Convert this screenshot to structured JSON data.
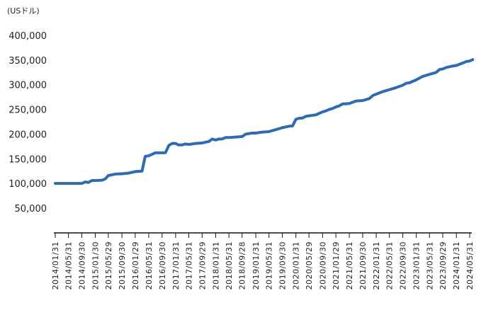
{
  "chart_data": {
    "type": "line",
    "title": "",
    "unit_label": "(USドル)",
    "xlabel": "",
    "ylabel": "",
    "ylim": [
      0,
      400000
    ],
    "yticks": [
      50000,
      100000,
      150000,
      200000,
      250000,
      300000,
      350000,
      400000
    ],
    "ytick_labels": [
      "50,000",
      "100,000",
      "150,000",
      "200,000",
      "250,000",
      "300,000",
      "350,000",
      "400,000"
    ],
    "xlim": [
      "2014-01-31",
      "2024-05-31"
    ],
    "xtick_dates": [
      "2014-01-31",
      "2014-05-31",
      "2014-09-30",
      "2015-01-30",
      "2015-05-29",
      "2015-09-30",
      "2016-01-29",
      "2016-05-31",
      "2016-09-30",
      "2017-01-31",
      "2017-05-31",
      "2017-09-29",
      "2018-01-31",
      "2018-05-31",
      "2018-09-28",
      "2019-01-31",
      "2019-05-31",
      "2019-09-30",
      "2020-01-31",
      "2020-05-29",
      "2020-09-30",
      "2021-01-29",
      "2021-05-31",
      "2021-09-30",
      "2022-01-31",
      "2022-05-31",
      "2022-09-30",
      "2023-01-31",
      "2023-05-31",
      "2023-09-29",
      "2024-01-31",
      "2024-05-31"
    ],
    "xtick_labels": [
      "2014/01/31",
      "2014/05/31",
      "2014/09/30",
      "2015/01/30",
      "2015/05/29",
      "2015/09/30",
      "2016/01/29",
      "2016/05/31",
      "2016/09/30",
      "2017/01/31",
      "2017/05/31",
      "2017/09/29",
      "2018/01/31",
      "2018/05/31",
      "2018/09/28",
      "2019/01/31",
      "2019/05/31",
      "2019/09/30",
      "2020/01/31",
      "2020/05/29",
      "2020/09/30",
      "2021/01/29",
      "2021/05/31",
      "2021/09/30",
      "2022/01/31",
      "2022/05/31",
      "2022/09/30",
      "2023/01/31",
      "2023/05/31",
      "2023/09/29",
      "2024/01/31",
      "2024/05/31"
    ],
    "grid": false,
    "legend": "none",
    "series": [
      {
        "color": "#2e6bb0",
        "points": [
          [
            "2014-01-31",
            100000
          ],
          [
            "2014-03-31",
            100000
          ],
          [
            "2014-05-31",
            100000
          ],
          [
            "2014-07-31",
            100000
          ],
          [
            "2014-09-30",
            100000
          ],
          [
            "2014-10-31",
            103000
          ],
          [
            "2014-11-28",
            102000
          ],
          [
            "2014-12-31",
            106000
          ],
          [
            "2015-01-30",
            106000
          ],
          [
            "2015-03-31",
            106500
          ],
          [
            "2015-04-30",
            109000
          ],
          [
            "2015-05-29",
            116000
          ],
          [
            "2015-07-31",
            119000
          ],
          [
            "2015-09-30",
            119500
          ],
          [
            "2015-11-30",
            121000
          ],
          [
            "2016-01-29",
            124000
          ],
          [
            "2016-03-31",
            125000
          ],
          [
            "2016-04-29",
            155000
          ],
          [
            "2016-05-31",
            156000
          ],
          [
            "2016-07-29",
            162000
          ],
          [
            "2016-09-30",
            162000
          ],
          [
            "2016-10-31",
            162500
          ],
          [
            "2016-11-30",
            177000
          ],
          [
            "2016-12-30",
            181000
          ],
          [
            "2017-01-31",
            181000
          ],
          [
            "2017-02-28",
            178000
          ],
          [
            "2017-03-31",
            178000
          ],
          [
            "2017-04-28",
            180000
          ],
          [
            "2017-05-31",
            179000
          ],
          [
            "2017-06-30",
            180000
          ],
          [
            "2017-07-31",
            181000
          ],
          [
            "2017-09-29",
            182000
          ],
          [
            "2017-11-30",
            185000
          ],
          [
            "2017-12-29",
            190000
          ],
          [
            "2018-01-31",
            188000
          ],
          [
            "2018-02-28",
            190000
          ],
          [
            "2018-03-29",
            190000
          ],
          [
            "2018-04-30",
            193000
          ],
          [
            "2018-05-31",
            193000
          ],
          [
            "2018-07-31",
            194000
          ],
          [
            "2018-09-28",
            195000
          ],
          [
            "2018-10-31",
            200000
          ],
          [
            "2018-12-31",
            202000
          ],
          [
            "2019-01-31",
            202000
          ],
          [
            "2019-03-29",
            204000
          ],
          [
            "2019-05-31",
            205000
          ],
          [
            "2019-07-31",
            209000
          ],
          [
            "2019-09-30",
            213000
          ],
          [
            "2019-11-29",
            216000
          ],
          [
            "2019-12-31",
            216500
          ],
          [
            "2020-01-31",
            230000
          ],
          [
            "2020-02-28",
            232000
          ],
          [
            "2020-03-31",
            232500
          ],
          [
            "2020-04-30",
            236000
          ],
          [
            "2020-05-29",
            237000
          ],
          [
            "2020-07-31",
            239000
          ],
          [
            "2020-09-30",
            245000
          ],
          [
            "2020-10-30",
            247000
          ],
          [
            "2020-11-30",
            250000
          ],
          [
            "2020-12-31",
            252000
          ],
          [
            "2021-01-29",
            255000
          ],
          [
            "2021-02-26",
            257000
          ],
          [
            "2021-03-31",
            261000
          ],
          [
            "2021-05-31",
            262000
          ],
          [
            "2021-07-30",
            267000
          ],
          [
            "2021-09-30",
            268000
          ],
          [
            "2021-11-30",
            272000
          ],
          [
            "2021-12-31",
            278000
          ],
          [
            "2022-01-31",
            281000
          ],
          [
            "2022-03-31",
            286000
          ],
          [
            "2022-05-31",
            290000
          ],
          [
            "2022-07-29",
            294000
          ],
          [
            "2022-09-30",
            299000
          ],
          [
            "2022-10-31",
            303000
          ],
          [
            "2022-11-30",
            304000
          ],
          [
            "2023-01-31",
            310000
          ],
          [
            "2023-03-31",
            317000
          ],
          [
            "2023-05-31",
            321000
          ],
          [
            "2023-07-31",
            325000
          ],
          [
            "2023-08-31",
            331000
          ],
          [
            "2023-09-29",
            332000
          ],
          [
            "2023-10-31",
            335000
          ],
          [
            "2023-12-29",
            338000
          ],
          [
            "2024-01-31",
            339000
          ],
          [
            "2024-03-29",
            344000
          ],
          [
            "2024-04-30",
            347000
          ],
          [
            "2024-05-31",
            348000
          ],
          [
            "2024-06-28",
            351000
          ]
        ]
      }
    ]
  }
}
